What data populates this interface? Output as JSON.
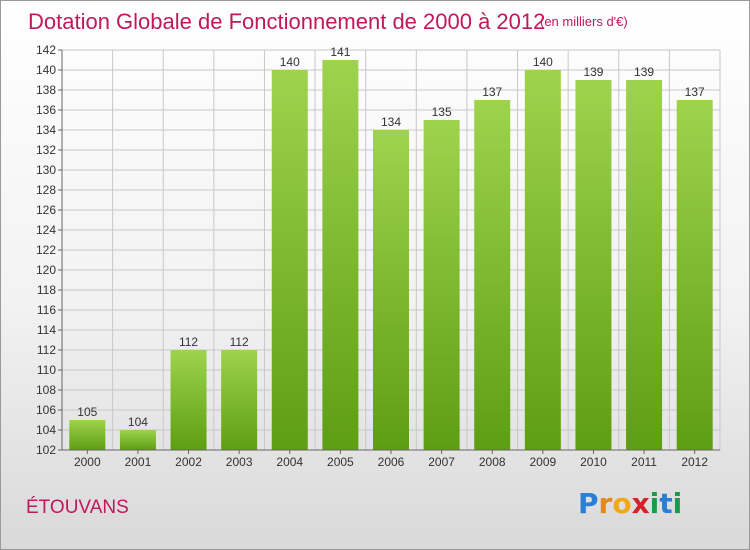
{
  "header": {
    "title": "Dotation Globale de Fonctionnement de 2000 à 2012",
    "subtitle": "(en milliers d'€)"
  },
  "footer": {
    "town": "ÉTOUVANS",
    "logo_text": "Proxiti",
    "logo_letters": [
      "P",
      "r",
      "o",
      "x",
      "i",
      "t",
      "i"
    ],
    "logo_colors": [
      "#2a7fd4",
      "#e2891a",
      "#f0a818",
      "#d8202a",
      "#1a9a4a",
      "#2a7fd4",
      "#1a9a4a"
    ]
  },
  "colors": {
    "accent": "#c2185b",
    "bar_top": "#9ed34e",
    "bar_bottom": "#5e9e12",
    "grid": "#c8c8c8"
  },
  "chart_data": {
    "type": "bar",
    "title": "Dotation Globale de Fonctionnement de 2000 à 2012",
    "subtitle": "(en milliers d'€)",
    "categories": [
      "2000",
      "2001",
      "2002",
      "2003",
      "2004",
      "2005",
      "2006",
      "2007",
      "2008",
      "2009",
      "2010",
      "2011",
      "2012"
    ],
    "values": [
      105,
      104,
      112,
      112,
      140,
      141,
      134,
      135,
      137,
      140,
      139,
      139,
      137
    ],
    "ylim": [
      102,
      142
    ],
    "yticks": [
      102,
      104,
      106,
      108,
      110,
      112,
      114,
      116,
      118,
      120,
      122,
      124,
      126,
      128,
      130,
      132,
      134,
      136,
      138,
      140,
      142
    ],
    "grid": true,
    "legend": "none"
  }
}
